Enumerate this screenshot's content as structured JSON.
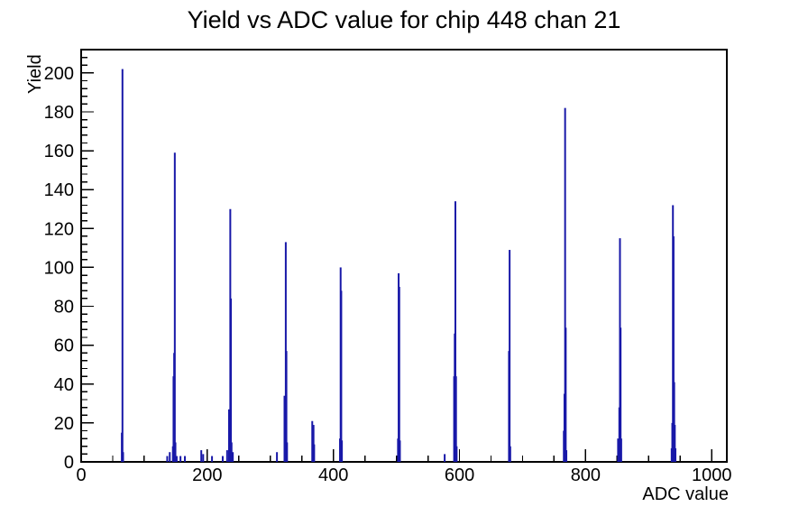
{
  "page": {
    "background": "#ffffff"
  },
  "chart_data": {
    "type": "bar",
    "style": "root-histogram",
    "title": "Yield vs ADC value for chip 448 chan 21",
    "xlabel": "ADC value",
    "ylabel": "Yield",
    "xlim": [
      0,
      1024
    ],
    "ylim": [
      0,
      212
    ],
    "x_major_ticks": [
      0,
      200,
      400,
      600,
      800,
      1000
    ],
    "x_minor_step": 50,
    "y_major_step": 20,
    "y_minor_step": 4,
    "grid": false,
    "legend": false,
    "bar_color": "#1818a8",
    "axis_color": "#000000",
    "bins": [
      [
        64,
        15
      ],
      [
        65,
        202
      ],
      [
        66,
        5
      ],
      [
        136,
        3
      ],
      [
        140,
        5
      ],
      [
        145,
        8
      ],
      [
        146,
        44
      ],
      [
        147,
        56
      ],
      [
        148,
        159
      ],
      [
        149,
        10
      ],
      [
        151,
        3
      ],
      [
        157,
        3
      ],
      [
        164,
        3
      ],
      [
        190,
        6
      ],
      [
        193,
        4
      ],
      [
        207,
        3
      ],
      [
        224,
        3
      ],
      [
        231,
        6
      ],
      [
        234,
        27
      ],
      [
        236,
        130
      ],
      [
        237,
        84
      ],
      [
        238,
        10
      ],
      [
        240,
        5
      ],
      [
        310,
        5
      ],
      [
        322,
        34
      ],
      [
        324,
        113
      ],
      [
        325,
        57
      ],
      [
        326,
        10
      ],
      [
        366,
        21
      ],
      [
        368,
        19
      ],
      [
        369,
        9
      ],
      [
        410,
        12
      ],
      [
        411,
        100
      ],
      [
        412,
        88
      ],
      [
        413,
        11
      ],
      [
        502,
        12
      ],
      [
        503,
        97
      ],
      [
        504,
        90
      ],
      [
        505,
        11
      ],
      [
        576,
        4
      ],
      [
        591,
        44
      ],
      [
        592,
        66
      ],
      [
        593,
        134
      ],
      [
        594,
        44
      ],
      [
        595,
        8
      ],
      [
        678,
        57
      ],
      [
        679,
        109
      ],
      [
        680,
        8
      ],
      [
        765,
        16
      ],
      [
        766,
        35
      ],
      [
        767,
        182
      ],
      [
        768,
        69
      ],
      [
        769,
        6
      ],
      [
        851,
        12
      ],
      [
        853,
        28
      ],
      [
        854,
        115
      ],
      [
        855,
        69
      ],
      [
        856,
        12
      ],
      [
        936,
        7
      ],
      [
        937,
        20
      ],
      [
        938,
        132
      ],
      [
        939,
        116
      ],
      [
        940,
        41
      ],
      [
        941,
        19
      ],
      [
        942,
        7
      ]
    ]
  }
}
